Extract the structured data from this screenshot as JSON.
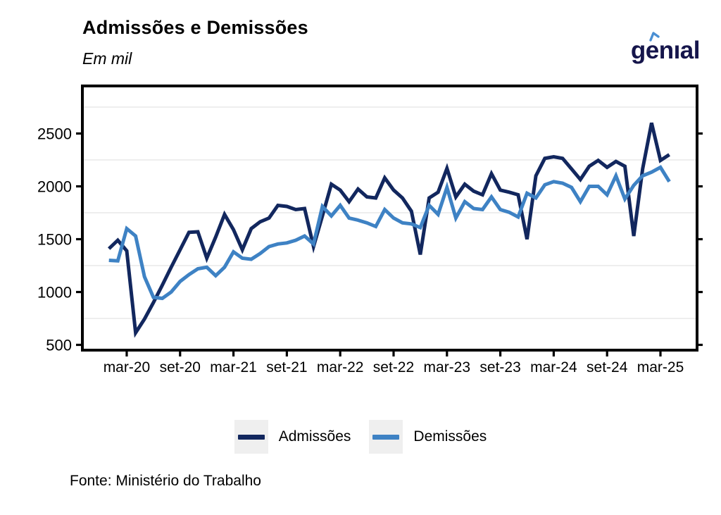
{
  "header": {
    "title": "Admissões e Demissões",
    "subtitle": "Em mil"
  },
  "logo": {
    "text": "genıal",
    "text_color": "#15154b",
    "accent_color": "#4a8fd3"
  },
  "legend": {
    "items": [
      {
        "label": "Admissões"
      },
      {
        "label": "Demissões"
      }
    ]
  },
  "footer": {
    "source": "Fonte: Ministério do Trabalho"
  },
  "chart_data": {
    "type": "line",
    "title": "Admissões e Demissões",
    "subtitle": "Em mil",
    "unit": "mil (thousands)",
    "x": [
      "jan-20",
      "fev-20",
      "mar-20",
      "abr-20",
      "mai-20",
      "jun-20",
      "jul-20",
      "ago-20",
      "set-20",
      "out-20",
      "nov-20",
      "dez-20",
      "jan-21",
      "fev-21",
      "mar-21",
      "abr-21",
      "mai-21",
      "jun-21",
      "jul-21",
      "ago-21",
      "set-21",
      "out-21",
      "nov-21",
      "dez-21",
      "jan-22",
      "fev-22",
      "mar-22",
      "abr-22",
      "mai-22",
      "jun-22",
      "jul-22",
      "ago-22",
      "set-22",
      "out-22",
      "nov-22",
      "dez-22",
      "jan-23",
      "fev-23",
      "mar-23",
      "abr-23",
      "mai-23",
      "jun-23",
      "jul-23",
      "ago-23",
      "set-23",
      "out-23",
      "nov-23",
      "dez-23",
      "jan-24",
      "fev-24",
      "mar-24",
      "abr-24",
      "mai-24",
      "jun-24",
      "jul-24",
      "ago-24",
      "set-24",
      "out-24",
      "nov-24",
      "dez-24",
      "jan-25",
      "fev-25",
      "mar-25",
      "abr-25"
    ],
    "series": [
      {
        "name": "Admissões",
        "color": "#12275e",
        "values": [
          1410,
          1490,
          1390,
          615,
          745,
          900,
          1065,
          1235,
          1400,
          1565,
          1570,
          1320,
          1520,
          1735,
          1590,
          1400,
          1600,
          1665,
          1700,
          1820,
          1810,
          1780,
          1790,
          1430,
          1720,
          2020,
          1965,
          1855,
          1975,
          1900,
          1890,
          2080,
          1965,
          1890,
          1765,
          1355,
          1890,
          1945,
          2170,
          1900,
          2020,
          1955,
          1920,
          2120,
          1965,
          1945,
          1920,
          1500,
          2100,
          2265,
          2280,
          2265,
          2165,
          2065,
          2190,
          2245,
          2180,
          2235,
          2190,
          1530,
          2165,
          2600,
          2245,
          2300
        ]
      },
      {
        "name": "Demissões",
        "color": "#3e82c4",
        "values": [
          1300,
          1295,
          1600,
          1530,
          1145,
          950,
          940,
          1000,
          1100,
          1165,
          1220,
          1235,
          1155,
          1235,
          1380,
          1320,
          1310,
          1365,
          1430,
          1455,
          1465,
          1490,
          1530,
          1455,
          1810,
          1720,
          1820,
          1700,
          1680,
          1655,
          1620,
          1780,
          1700,
          1655,
          1645,
          1610,
          1820,
          1735,
          1990,
          1700,
          1855,
          1790,
          1780,
          1900,
          1780,
          1755,
          1710,
          1935,
          1890,
          2015,
          2045,
          2030,
          1990,
          1855,
          2000,
          2000,
          1920,
          2100,
          1880,
          2010,
          2100,
          2135,
          2180,
          2045
        ]
      }
    ],
    "ylim": [
      450,
      2950
    ],
    "y_ticks": [
      500,
      1000,
      1500,
      2000,
      2500
    ],
    "minor_gridlines": [
      750,
      1250,
      1750,
      2250,
      2750
    ],
    "x_ticks": [
      {
        "index": 2,
        "label": "mar-20"
      },
      {
        "index": 8,
        "label": "set-20"
      },
      {
        "index": 14,
        "label": "mar-21"
      },
      {
        "index": 20,
        "label": "set-21"
      },
      {
        "index": 26,
        "label": "mar-22"
      },
      {
        "index": 32,
        "label": "set-22"
      },
      {
        "index": 38,
        "label": "mar-23"
      },
      {
        "index": 44,
        "label": "set-23"
      },
      {
        "index": 50,
        "label": "mar-24"
      },
      {
        "index": 56,
        "label": "set-24"
      },
      {
        "index": 62,
        "label": "mar-25"
      }
    ],
    "grid": "horizontal-minor-only",
    "legend_position": "bottom",
    "panel_border": true,
    "axis_color": "#000000",
    "gridline_color": "#e9e9e9",
    "legend_key_bg": "#efefef"
  }
}
